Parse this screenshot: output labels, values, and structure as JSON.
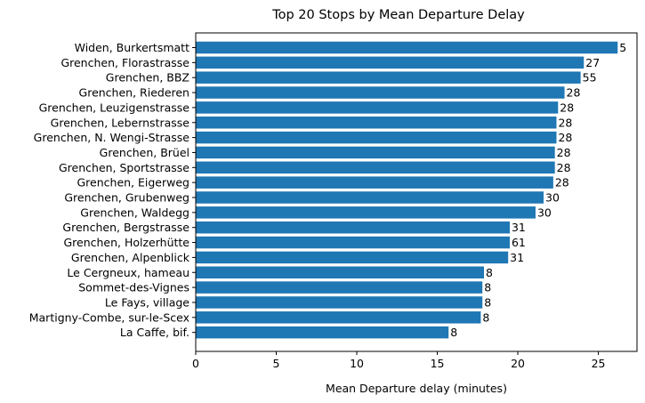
{
  "chart_data": {
    "type": "bar",
    "orientation": "horizontal",
    "title": "Top 20 Stops by Mean Departure Delay",
    "xlabel": "Mean Departure delay (minutes)",
    "ylabel": "",
    "xlim": [
      0,
      27.4
    ],
    "xticks": [
      0,
      5,
      10,
      15,
      20,
      25
    ],
    "grid": false,
    "bar_color": "#1f77b4",
    "categories": [
      "Widen, Burkertsmatt",
      "Grenchen, Florastrasse",
      "Grenchen, BBZ",
      "Grenchen, Riederen",
      "Grenchen, Leuzigenstrasse",
      "Grenchen, Lebernstrasse",
      "Grenchen, N. Wengi-Strasse",
      "Grenchen, Brüel",
      "Grenchen, Sportstrasse",
      "Grenchen, Eigerweg",
      "Grenchen, Grubenweg",
      "Grenchen, Waldegg",
      "Grenchen, Bergstrasse",
      "Grenchen, Holzerhütte",
      "Grenchen, Alpenblick",
      "Le Cergneux, hameau",
      "Sommet-des-Vignes",
      "Le Fays, village",
      "Martigny-Combe, sur-le-Scex",
      "La Caffe, bif."
    ],
    "values": [
      26.2,
      24.1,
      23.9,
      22.9,
      22.5,
      22.4,
      22.4,
      22.3,
      22.3,
      22.2,
      21.6,
      21.1,
      19.5,
      19.5,
      19.4,
      17.9,
      17.8,
      17.8,
      17.7,
      15.7
    ],
    "bar_labels": [
      "5",
      "27",
      "55",
      "28",
      "28",
      "28",
      "28",
      "28",
      "28",
      "28",
      "30",
      "30",
      "31",
      "61",
      "31",
      "8",
      "8",
      "8",
      "8",
      "8"
    ]
  }
}
